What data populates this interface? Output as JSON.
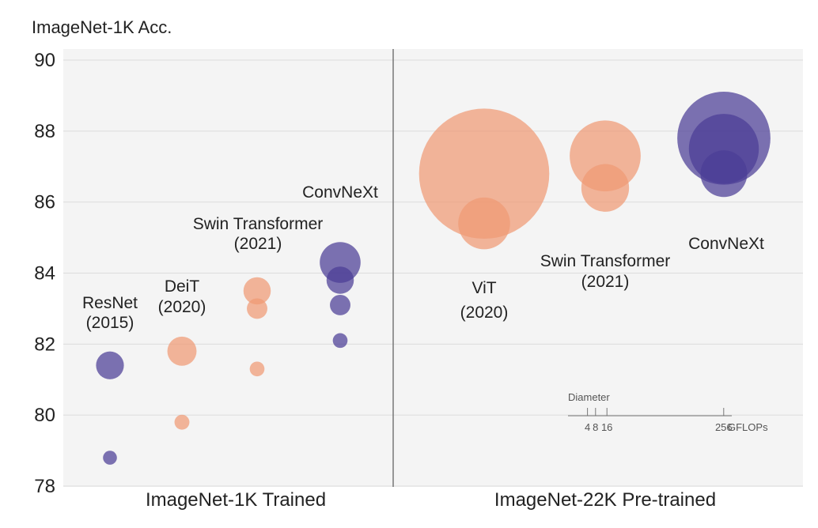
{
  "chart_data": {
    "type": "scatter",
    "ylabel": "ImageNet-1K Acc.",
    "ylim": [
      78,
      90
    ],
    "yticks": [
      78,
      80,
      82,
      84,
      86,
      88,
      90
    ],
    "grid": true,
    "panels": [
      "ImageNet-1K Trained",
      "ImageNet-22K Pre-trained"
    ],
    "size_unit": "GFLOPs",
    "colors": {
      "convnet": "#4b3d95",
      "transformer": "#f09a74"
    },
    "series": [
      {
        "model": "ResNet",
        "year": "(2015)",
        "panel": "ImageNet-1K Trained",
        "family": "convnet",
        "points": [
          {
            "y": 78.8,
            "gflops": 4
          },
          {
            "y": 81.4,
            "gflops": 16
          }
        ]
      },
      {
        "model": "DeiT",
        "year": "(2020)",
        "panel": "ImageNet-1K Trained",
        "family": "transformer",
        "points": [
          {
            "y": 79.8,
            "gflops": 4.6
          },
          {
            "y": 81.8,
            "gflops": 17.6
          }
        ]
      },
      {
        "model": "Swin Transformer",
        "year": "(2021)",
        "panel": "ImageNet-1K Trained",
        "family": "transformer",
        "points": [
          {
            "y": 81.3,
            "gflops": 4.5
          },
          {
            "y": 83.0,
            "gflops": 8.7
          },
          {
            "y": 83.5,
            "gflops": 15.4
          }
        ]
      },
      {
        "model": "ConvNeXt",
        "year": "",
        "panel": "ImageNet-1K Trained",
        "family": "convnet",
        "points": [
          {
            "y": 82.1,
            "gflops": 4.5
          },
          {
            "y": 83.1,
            "gflops": 8.7
          },
          {
            "y": 83.8,
            "gflops": 15.4
          },
          {
            "y": 84.3,
            "gflops": 34.4
          }
        ]
      },
      {
        "model": "ViT",
        "year": "(2020)",
        "panel": "ImageNet-22K Pre-trained",
        "family": "transformer",
        "points": [
          {
            "y": 85.4,
            "gflops": 55.5
          },
          {
            "y": 86.8,
            "gflops": 350
          }
        ]
      },
      {
        "model": "Swin Transformer",
        "year": "(2021)",
        "panel": "ImageNet-22K Pre-trained",
        "family": "transformer",
        "points": [
          {
            "y": 86.4,
            "gflops": 47
          },
          {
            "y": 87.3,
            "gflops": 104
          }
        ]
      },
      {
        "model": "ConvNeXt",
        "year": "",
        "panel": "ImageNet-22K Pre-trained",
        "family": "convnet",
        "points": [
          {
            "y": 86.8,
            "gflops": 45
          },
          {
            "y": 87.5,
            "gflops": 101
          },
          {
            "y": 87.8,
            "gflops": 179
          }
        ]
      }
    ],
    "legend": {
      "title": "Diameter",
      "ticks": [
        4,
        8,
        16,
        256
      ],
      "unit": "GFLOPs"
    }
  }
}
